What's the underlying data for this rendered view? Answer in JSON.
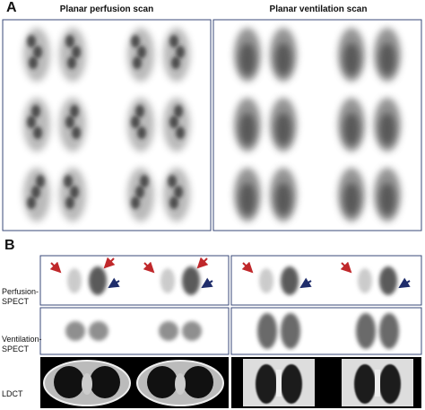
{
  "panel_a": {
    "label": "A",
    "titles": [
      "Planar perfusion scan",
      "Planar ventilation scan"
    ]
  },
  "panel_b": {
    "label": "B",
    "rows": [
      "Perfusion-\nSPECT",
      "Ventilation-\nSPECT",
      "LDCT"
    ]
  }
}
